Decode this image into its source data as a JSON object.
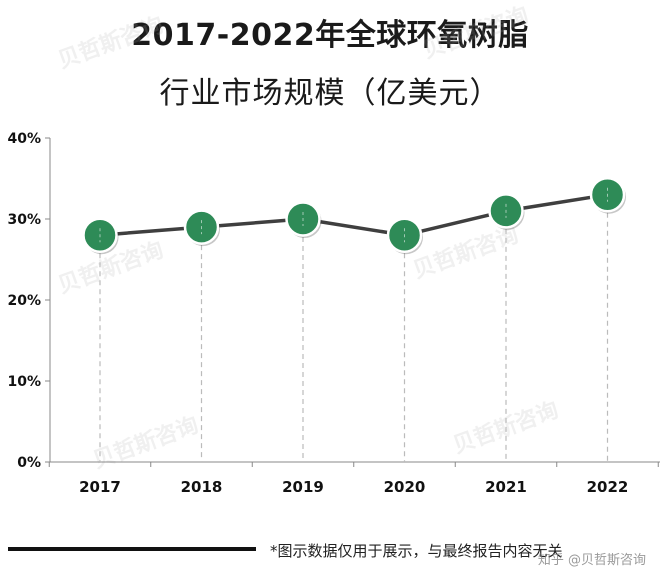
{
  "title_line1": "2017-2022年全球环氧树脂",
  "title_line2": "行业市场规模（亿美元）",
  "footnote": "*图示数据仅用于展示，与最终报告内容无关",
  "watermark": "贝哲斯咨询",
  "credit": "知乎 @贝哲斯咨询",
  "colors": {
    "line": "#3f3f3f",
    "marker_fill": "#2e8b57",
    "marker_stroke": "#ffffff",
    "axis": "#888888",
    "drop_line": "#bbbbbb"
  },
  "chart_data": {
    "type": "line",
    "categories": [
      "2017",
      "2018",
      "2019",
      "2020",
      "2021",
      "2022"
    ],
    "values": [
      28,
      29,
      30,
      28,
      31,
      33
    ],
    "ylim": [
      0,
      40
    ],
    "yticks": [
      "0%",
      "10%",
      "20%",
      "30%",
      "40%"
    ],
    "ylabel": "",
    "xlabel": "",
    "grid": false,
    "legend": "none"
  }
}
